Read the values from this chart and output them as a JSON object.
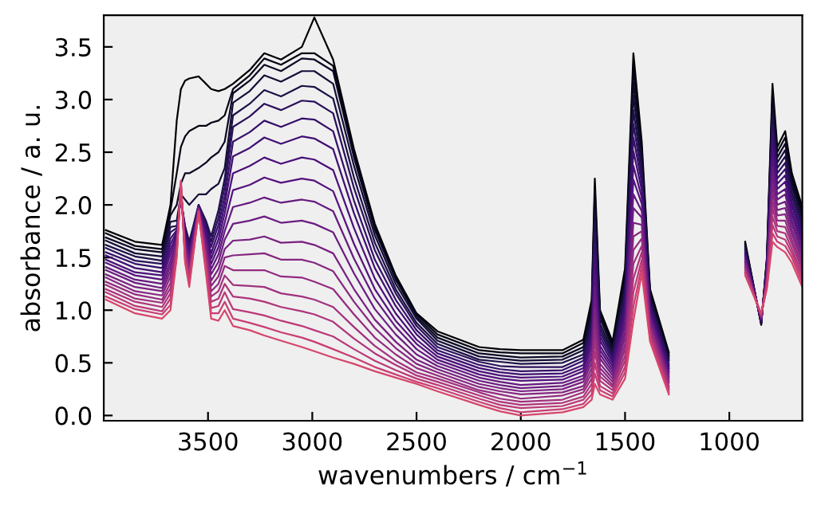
{
  "chart_data": {
    "type": "line",
    "xlabel": "wavenumbers / cm$^{−1}$",
    "ylabel": "absorbance / a. u.",
    "x": [
      3990,
      3850,
      3720,
      3680,
      3650,
      3630,
      3610,
      3590,
      3545,
      3510,
      3485,
      3450,
      3420,
      3380,
      3300,
      3230,
      3150,
      3050,
      2990,
      2900,
      2800,
      2700,
      2600,
      2500,
      2400,
      2200,
      2100,
      2000,
      1800,
      1700,
      1660,
      1645,
      1620,
      1560,
      1500,
      1460,
      1420,
      1380,
      1290,
      1100,
      924,
      847,
      820,
      793,
      770,
      732,
      700,
      650
    ],
    "xlim": [
      4000,
      650
    ],
    "xticks": [
      3500,
      3000,
      2500,
      2000,
      1500,
      1000
    ],
    "ylim": [
      -0.05,
      3.8
    ],
    "yticks": [
      {
        "value": 0,
        "label": "0.0"
      },
      {
        "value": 0.5,
        "label": "0.5"
      },
      {
        "value": 1,
        "label": "1.0"
      },
      {
        "value": 1.5,
        "label": "1.5"
      },
      {
        "value": 2,
        "label": "2.0"
      },
      {
        "value": 2.5,
        "label": "2.5"
      },
      {
        "value": 3,
        "label": "3.0"
      },
      {
        "value": 3.5,
        "label": "3.5"
      }
    ],
    "grid": false,
    "marker": "none",
    "line_style": "solid",
    "series": [
      {
        "color": "#000004",
        "values": [
          1.76,
          1.65,
          1.62,
          2.0,
          2.8,
          3.1,
          3.18,
          3.2,
          3.22,
          3.15,
          3.1,
          3.08,
          3.1,
          3.15,
          3.28,
          3.44,
          3.38,
          3.5,
          3.78,
          3.38,
          2.53,
          1.82,
          1.33,
          0.97,
          0.8,
          0.65,
          0.63,
          0.62,
          0.62,
          0.72,
          1.1,
          2.25,
          1.0,
          0.7,
          1.4,
          3.44,
          2.6,
          1.2,
          0.6,
          null,
          1.65,
          0.86,
          1.5,
          3.15,
          2.55,
          2.7,
          2.3,
          1.98
        ]
      },
      {
        "color": "#040414",
        "values": [
          1.73,
          1.61,
          1.58,
          1.95,
          2.3,
          2.55,
          2.65,
          2.7,
          2.75,
          2.75,
          2.78,
          2.8,
          2.85,
          3.1,
          3.23,
          3.39,
          3.33,
          3.44,
          3.44,
          3.32,
          2.49,
          1.79,
          1.31,
          0.96,
          0.77,
          0.62,
          0.6,
          0.59,
          0.59,
          0.69,
          1.05,
          2.15,
          0.96,
          0.67,
          1.34,
          3.31,
          2.53,
          1.17,
          0.58,
          null,
          1.63,
          0.87,
          1.48,
          3.07,
          2.5,
          2.64,
          2.25,
          1.94
        ]
      },
      {
        "color": "#0b0924",
        "values": [
          1.69,
          1.58,
          1.55,
          1.9,
          2.0,
          2.2,
          2.3,
          2.3,
          2.35,
          2.4,
          2.45,
          2.5,
          2.6,
          3.06,
          3.18,
          3.33,
          3.27,
          3.39,
          3.38,
          3.27,
          2.45,
          1.76,
          1.29,
          0.94,
          0.74,
          0.59,
          0.57,
          0.55,
          0.56,
          0.65,
          1.0,
          2.05,
          0.92,
          0.64,
          1.29,
          3.17,
          2.47,
          1.15,
          0.56,
          null,
          1.62,
          0.87,
          1.47,
          2.99,
          2.45,
          2.58,
          2.21,
          1.9
        ]
      },
      {
        "color": "#140e36",
        "values": [
          1.66,
          1.54,
          1.51,
          1.84,
          1.85,
          2.1,
          2.05,
          2.0,
          2.1,
          2.1,
          2.15,
          2.2,
          2.35,
          2.97,
          3.08,
          3.23,
          3.17,
          3.27,
          3.27,
          3.15,
          2.37,
          1.71,
          1.25,
          0.92,
          0.71,
          0.56,
          0.54,
          0.52,
          0.53,
          0.62,
          0.95,
          1.94,
          0.87,
          0.61,
          1.23,
          3.04,
          2.4,
          1.12,
          0.54,
          null,
          1.6,
          0.88,
          1.45,
          2.91,
          2.4,
          2.52,
          2.17,
          1.86
        ]
      },
      {
        "color": "#1d1147",
        "values": [
          1.62,
          1.51,
          1.47,
          1.79,
          1.8,
          2.05,
          1.8,
          1.65,
          2.0,
          1.85,
          1.7,
          1.95,
          2.25,
          2.85,
          2.96,
          3.09,
          3.03,
          3.13,
          3.12,
          3.01,
          2.26,
          1.64,
          1.2,
          0.88,
          0.68,
          0.53,
          0.51,
          0.49,
          0.5,
          0.58,
          0.9,
          1.84,
          0.83,
          0.58,
          1.18,
          2.9,
          2.34,
          1.09,
          0.52,
          null,
          1.58,
          0.88,
          1.44,
          2.83,
          2.35,
          2.46,
          2.12,
          1.82
        ]
      },
      {
        "color": "#2a115c",
        "values": [
          1.59,
          1.47,
          1.44,
          1.74,
          1.78,
          2.06,
          1.78,
          1.62,
          2.0,
          1.82,
          1.65,
          1.88,
          2.17,
          2.74,
          2.84,
          2.96,
          2.9,
          2.99,
          2.98,
          2.87,
          2.16,
          1.57,
          1.16,
          0.85,
          0.65,
          0.51,
          0.47,
          0.46,
          0.46,
          0.55,
          0.85,
          1.74,
          0.79,
          0.56,
          1.12,
          2.77,
          2.27,
          1.07,
          0.49,
          null,
          1.57,
          0.89,
          1.42,
          2.76,
          2.3,
          2.4,
          2.08,
          1.78
        ]
      },
      {
        "color": "#35106a",
        "values": [
          1.55,
          1.44,
          1.4,
          1.68,
          1.76,
          2.07,
          1.75,
          1.59,
          1.99,
          1.78,
          1.6,
          1.81,
          2.08,
          2.6,
          2.69,
          2.8,
          2.74,
          2.82,
          2.81,
          2.7,
          2.04,
          1.48,
          1.1,
          0.81,
          0.62,
          0.48,
          0.44,
          0.42,
          0.43,
          0.52,
          0.8,
          1.63,
          0.75,
          0.53,
          1.07,
          2.64,
          2.21,
          1.04,
          0.47,
          null,
          1.55,
          0.89,
          1.41,
          2.68,
          2.25,
          2.34,
          2.03,
          1.74
        ]
      },
      {
        "color": "#3f0f72",
        "values": [
          1.52,
          1.4,
          1.36,
          1.63,
          1.74,
          2.09,
          1.73,
          1.56,
          1.99,
          1.75,
          1.54,
          1.74,
          2.0,
          2.46,
          2.54,
          2.64,
          2.58,
          2.65,
          2.63,
          2.53,
          1.92,
          1.4,
          1.04,
          0.77,
          0.59,
          0.45,
          0.41,
          0.39,
          0.4,
          0.48,
          0.75,
          1.53,
          0.71,
          0.5,
          1.01,
          2.51,
          2.14,
          1.02,
          0.45,
          null,
          1.53,
          0.9,
          1.39,
          2.6,
          2.2,
          2.28,
          1.99,
          1.7
        ]
      },
      {
        "color": "#4a1079",
        "values": [
          1.48,
          1.36,
          1.33,
          1.58,
          1.72,
          2.1,
          1.71,
          1.54,
          1.98,
          1.72,
          1.49,
          1.67,
          1.92,
          2.3,
          2.37,
          2.45,
          2.39,
          2.45,
          2.43,
          2.33,
          1.78,
          1.3,
          0.97,
          0.72,
          0.56,
          0.42,
          0.38,
          0.36,
          0.37,
          0.45,
          0.7,
          1.43,
          0.66,
          0.47,
          0.96,
          2.37,
          2.07,
          0.99,
          0.43,
          null,
          1.52,
          0.91,
          1.37,
          2.52,
          2.15,
          2.22,
          1.94,
          1.66
        ]
      },
      {
        "color": "#55137d",
        "values": [
          1.45,
          1.33,
          1.29,
          1.53,
          1.7,
          2.11,
          1.68,
          1.51,
          1.98,
          1.68,
          1.44,
          1.6,
          1.83,
          2.14,
          2.19,
          2.26,
          2.21,
          2.25,
          2.23,
          2.13,
          1.63,
          1.2,
          0.9,
          0.68,
          0.53,
          0.39,
          0.35,
          0.33,
          0.34,
          0.42,
          0.65,
          1.33,
          0.62,
          0.44,
          0.9,
          2.24,
          2.01,
          0.96,
          0.41,
          null,
          1.5,
          0.91,
          1.36,
          2.44,
          2.1,
          2.15,
          1.9,
          1.62
        ]
      },
      {
        "color": "#641a80",
        "values": [
          1.41,
          1.29,
          1.25,
          1.47,
          1.68,
          2.12,
          1.66,
          1.48,
          1.97,
          1.65,
          1.39,
          1.53,
          1.75,
          1.98,
          2.02,
          2.07,
          2.02,
          2.05,
          2.03,
          1.94,
          1.49,
          1.11,
          0.84,
          0.63,
          0.5,
          0.36,
          0.32,
          0.29,
          0.31,
          0.38,
          0.6,
          1.22,
          0.58,
          0.41,
          0.85,
          2.1,
          1.94,
          0.94,
          0.39,
          null,
          1.48,
          0.92,
          1.34,
          2.36,
          2.05,
          2.1,
          1.85,
          1.58
        ]
      },
      {
        "color": "#6c1d81",
        "values": [
          1.38,
          1.26,
          1.21,
          1.42,
          1.66,
          2.13,
          1.64,
          1.45,
          1.97,
          1.62,
          1.34,
          1.46,
          1.67,
          1.82,
          1.85,
          1.89,
          1.83,
          1.85,
          1.82,
          1.74,
          1.35,
          1.01,
          0.77,
          0.58,
          0.47,
          0.33,
          0.29,
          0.26,
          0.28,
          0.35,
          0.55,
          1.12,
          0.54,
          0.38,
          0.79,
          1.97,
          1.88,
          0.91,
          0.37,
          null,
          1.46,
          0.92,
          1.33,
          2.28,
          2.0,
          2.03,
          1.81,
          1.54
        ]
      },
      {
        "color": "#7a2181",
        "values": [
          1.34,
          1.22,
          1.18,
          1.37,
          1.64,
          2.15,
          1.61,
          1.42,
          1.96,
          1.58,
          1.28,
          1.39,
          1.58,
          1.66,
          1.67,
          1.7,
          1.64,
          1.65,
          1.62,
          1.54,
          1.2,
          0.91,
          0.7,
          0.53,
          0.44,
          0.3,
          0.26,
          0.23,
          0.25,
          0.32,
          0.5,
          1.02,
          0.49,
          0.35,
          0.74,
          1.83,
          1.81,
          0.88,
          0.35,
          null,
          1.45,
          0.93,
          1.31,
          2.2,
          1.95,
          1.97,
          1.76,
          1.5
        ]
      },
      {
        "color": "#862781",
        "values": [
          1.31,
          1.18,
          1.14,
          1.32,
          1.62,
          2.16,
          1.59,
          1.39,
          1.96,
          1.55,
          1.23,
          1.32,
          1.5,
          1.52,
          1.53,
          1.54,
          1.48,
          1.48,
          1.45,
          1.37,
          1.08,
          0.83,
          0.64,
          0.49,
          0.41,
          0.27,
          0.23,
          0.2,
          0.22,
          0.28,
          0.45,
          0.92,
          0.45,
          0.32,
          0.68,
          1.7,
          1.75,
          0.86,
          0.33,
          null,
          1.43,
          0.94,
          1.29,
          2.12,
          1.9,
          1.91,
          1.72,
          1.46
        ]
      },
      {
        "color": "#932b80",
        "values": [
          1.27,
          1.15,
          1.1,
          1.26,
          1.6,
          2.17,
          1.57,
          1.36,
          1.95,
          1.52,
          1.18,
          1.25,
          1.42,
          1.38,
          1.38,
          1.38,
          1.32,
          1.31,
          1.27,
          1.2,
          0.96,
          0.74,
          0.58,
          0.45,
          0.38,
          0.24,
          0.2,
          0.16,
          0.19,
          0.25,
          0.4,
          0.81,
          0.41,
          0.29,
          0.63,
          1.57,
          1.68,
          0.83,
          0.31,
          null,
          1.41,
          0.94,
          1.28,
          2.04,
          1.85,
          1.85,
          1.67,
          1.42
        ]
      },
      {
        "color": "#a1307e",
        "values": [
          1.24,
          1.11,
          1.07,
          1.21,
          1.58,
          2.18,
          1.54,
          1.33,
          1.95,
          1.48,
          1.13,
          1.18,
          1.33,
          1.24,
          1.23,
          1.22,
          1.16,
          1.13,
          1.1,
          1.03,
          0.84,
          0.66,
          0.52,
          0.41,
          0.35,
          0.22,
          0.16,
          0.13,
          0.15,
          0.22,
          0.35,
          0.71,
          0.37,
          0.27,
          0.57,
          1.44,
          1.61,
          0.81,
          0.28,
          null,
          1.4,
          0.95,
          1.26,
          1.97,
          1.8,
          1.79,
          1.63,
          1.38
        ]
      },
      {
        "color": "#ae347b",
        "values": [
          1.2,
          1.08,
          1.03,
          1.16,
          1.56,
          2.19,
          1.52,
          1.31,
          1.94,
          1.45,
          1.08,
          1.11,
          1.25,
          1.13,
          1.11,
          1.08,
          1.03,
          0.99,
          0.96,
          0.89,
          0.73,
          0.59,
          0.48,
          0.38,
          0.32,
          0.19,
          0.13,
          0.1,
          0.12,
          0.18,
          0.3,
          0.61,
          0.33,
          0.24,
          0.52,
          1.3,
          1.55,
          0.78,
          0.26,
          null,
          1.38,
          0.95,
          1.25,
          1.89,
          1.75,
          1.73,
          1.58,
          1.34
        ]
      },
      {
        "color": "#bb3978",
        "values": [
          1.17,
          1.04,
          0.99,
          1.11,
          1.54,
          2.21,
          1.5,
          1.28,
          1.94,
          1.42,
          1.02,
          1.04,
          1.17,
          1.01,
          0.98,
          0.95,
          0.9,
          0.85,
          0.81,
          0.75,
          0.63,
          0.52,
          0.43,
          0.35,
          0.29,
          0.16,
          0.1,
          0.07,
          0.09,
          0.15,
          0.25,
          0.5,
          0.28,
          0.21,
          0.46,
          1.17,
          1.48,
          0.75,
          0.24,
          null,
          1.36,
          0.96,
          1.23,
          1.81,
          1.7,
          1.67,
          1.54,
          1.3
        ]
      },
      {
        "color": "#c83e73",
        "values": [
          1.13,
          1.01,
          0.96,
          1.05,
          1.52,
          2.22,
          1.47,
          1.25,
          1.93,
          1.38,
          0.97,
          0.97,
          1.08,
          0.92,
          0.88,
          0.84,
          0.79,
          0.74,
          0.7,
          0.63,
          0.55,
          0.46,
          0.39,
          0.32,
          0.26,
          0.13,
          0.07,
          0.03,
          0.06,
          0.11,
          0.2,
          0.4,
          0.24,
          0.18,
          0.41,
          1.03,
          1.42,
          0.73,
          0.22,
          null,
          1.35,
          0.96,
          1.22,
          1.73,
          1.65,
          1.61,
          1.5,
          1.26
        ]
      },
      {
        "color": "#d6456c",
        "values": [
          1.1,
          0.97,
          0.92,
          1.0,
          1.5,
          2.23,
          1.45,
          1.22,
          1.93,
          1.35,
          0.92,
          0.9,
          1.0,
          0.85,
          0.81,
          0.76,
          0.71,
          0.65,
          0.61,
          0.55,
          0.49,
          0.42,
          0.36,
          0.3,
          0.23,
          0.1,
          0.04,
          0.0,
          0.03,
          0.08,
          0.15,
          0.3,
          0.2,
          0.15,
          0.35,
          0.9,
          1.35,
          0.7,
          0.2,
          null,
          1.33,
          0.97,
          1.2,
          1.65,
          1.6,
          1.55,
          1.45,
          1.22
        ]
      }
    ]
  }
}
